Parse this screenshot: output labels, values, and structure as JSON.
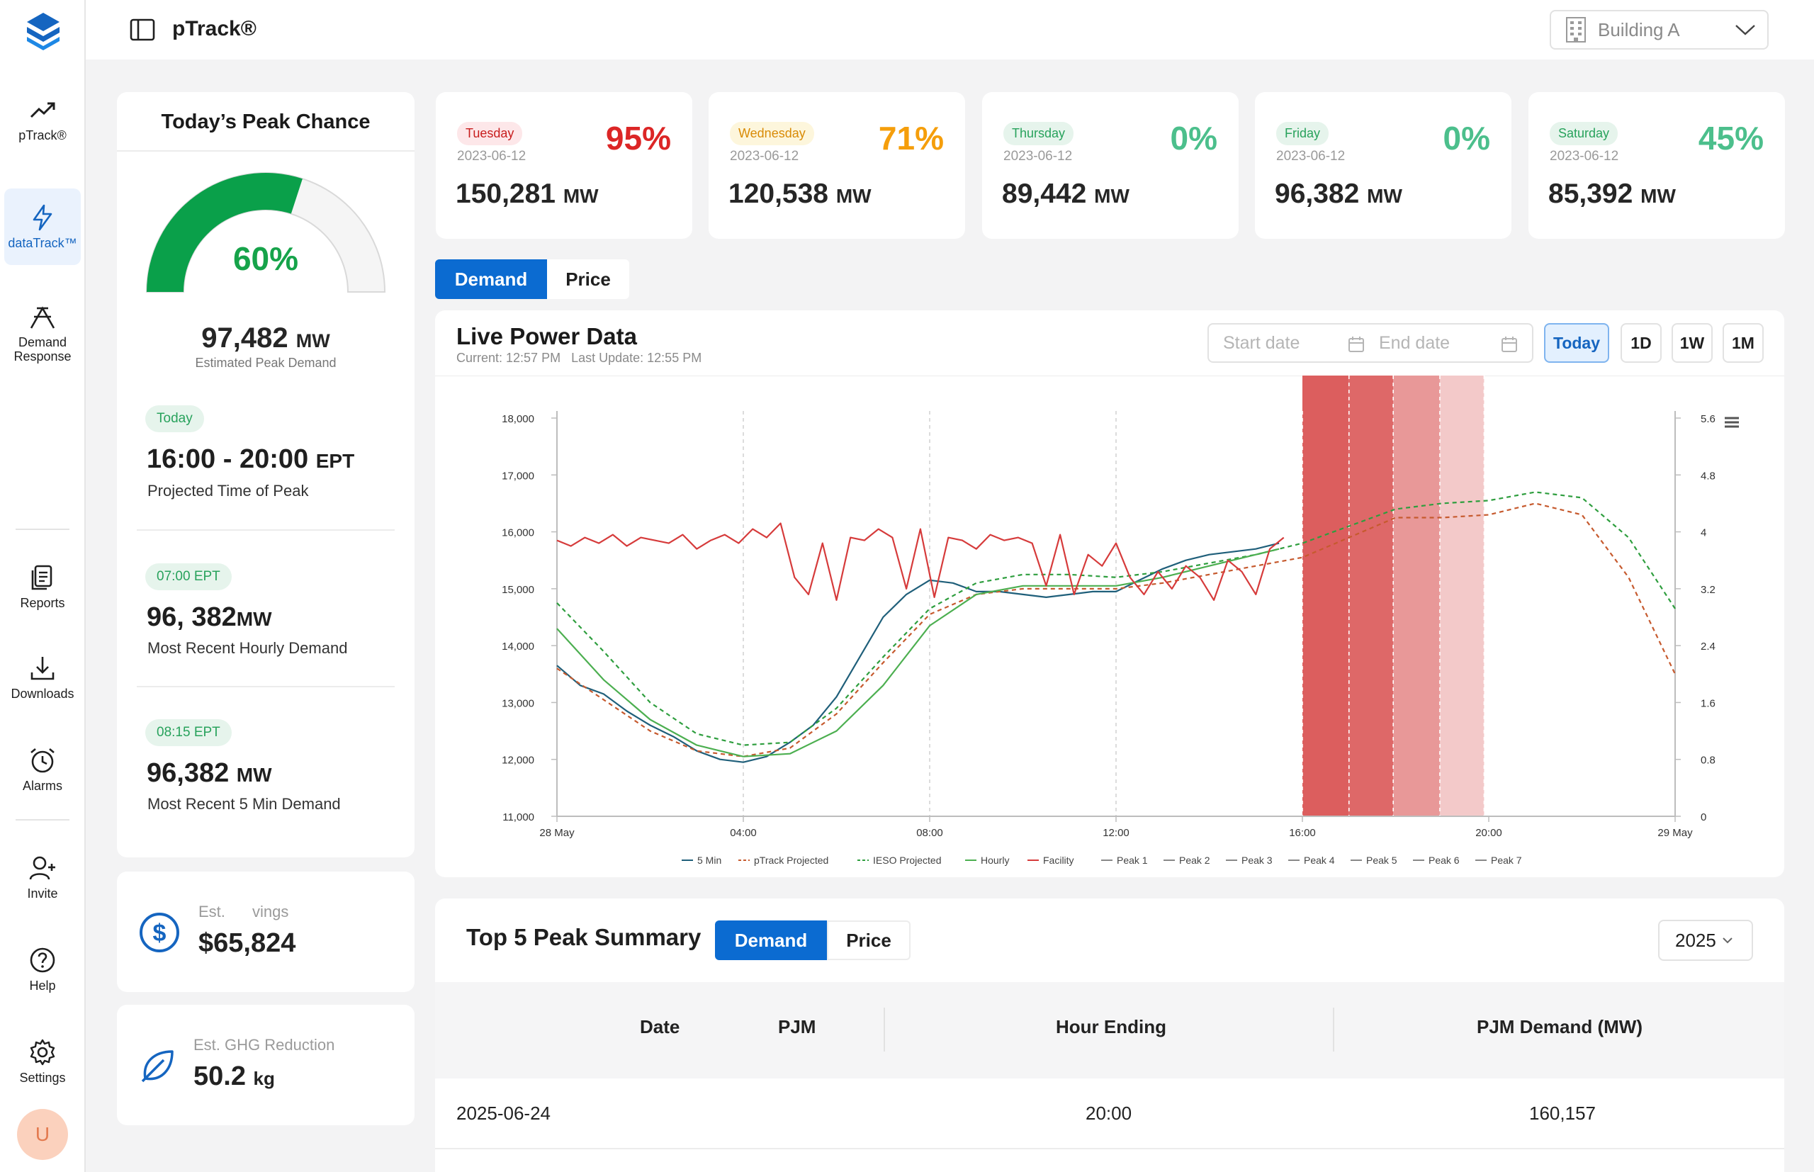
{
  "app": {
    "title": "pTrack®"
  },
  "sidebar": {
    "items": [
      {
        "label": "pTrack®",
        "icon": "trending-up-icon"
      },
      {
        "label": "dataTrack™",
        "icon": "lightning-icon"
      },
      {
        "label": "Demand Response",
        "icon": "demand-response-icon"
      },
      {
        "label": "Reports",
        "icon": "reports-icon"
      },
      {
        "label": "Downloads",
        "icon": "download-icon"
      },
      {
        "label": "Alarms",
        "icon": "alarm-clock-icon"
      },
      {
        "label": "Invite",
        "icon": "add-user-icon"
      },
      {
        "label": "Help",
        "icon": "help-icon"
      },
      {
        "label": "Settings",
        "icon": "gear-icon"
      }
    ],
    "active": "dataTrack™",
    "avatar_initial": "U"
  },
  "topbar": {
    "building": "Building A"
  },
  "peak_card": {
    "title": "Today’s Peak Chance",
    "gauge_value": "60%",
    "gauge_fraction": 0.6,
    "est_peak_value": "97,482",
    "est_peak_unit": "MW",
    "est_peak_label": "Estimated Peak Demand",
    "today_pill": "Today",
    "time_range": "16:00 - 20:00",
    "time_zone": "EPT",
    "time_label": "Projected Time of Peak",
    "hourly_pill": "07:00 EPT",
    "hourly_value": "96, 382",
    "hourly_unit": "MW",
    "hourly_label": "Most Recent Hourly Demand",
    "fivemin_pill": "08:15 EPT",
    "fivemin_value": "96,382",
    "fivemin_unit": "MW",
    "fivemin_label": "Most Recent 5 Min Demand"
  },
  "savings": {
    "label_a": "Est.",
    "label_b": "vings",
    "value": "$65,824"
  },
  "ghg": {
    "label": "Est. GHG Reduction",
    "value": "50.2",
    "unit": "kg"
  },
  "forecast": [
    {
      "day": "Tuesday",
      "date": "2023-06-12",
      "pct": "95%",
      "mw": "150,281",
      "unit": "MW",
      "color": "#dc2626",
      "pill_bg": "#fde7e9",
      "pill_color": "#c81e1e"
    },
    {
      "day": "Wednesday",
      "date": "2023-06-12",
      "pct": "71%",
      "mw": "120,538",
      "unit": "MW",
      "color": "#f59e0b",
      "pill_bg": "#fdf6dc",
      "pill_color": "#d98b06"
    },
    {
      "day": "Thursday",
      "date": "2023-06-12",
      "pct": "0%",
      "mw": "89,442",
      "unit": "MW",
      "color": "#4cbf8c",
      "pill_bg": "#e6f4ec",
      "pill_color": "#28a25c"
    },
    {
      "day": "Friday",
      "date": "2023-06-12",
      "pct": "0%",
      "mw": "96,382",
      "unit": "MW",
      "color": "#4cbf8c",
      "pill_bg": "#e6f4ec",
      "pill_color": "#28a25c"
    },
    {
      "day": "Saturday",
      "date": "2023-06-12",
      "pct": "45%",
      "mw": "85,392",
      "unit": "MW",
      "color": "#4cbf8c",
      "pill_bg": "#e6f4ec",
      "pill_color": "#28a25c"
    }
  ],
  "main_tabs": {
    "demand": "Demand",
    "price": "Price"
  },
  "chart_card": {
    "title": "Live Power Data",
    "current": "Current: 12:57 PM",
    "last_update": "Last Update: 12:55 PM",
    "start_placeholder": "Start date",
    "end_placeholder": "End date",
    "ranges": [
      "Today",
      "1D",
      "1W",
      "1M"
    ]
  },
  "chart_data": {
    "type": "line",
    "x_ticks": [
      {
        "label": "28 May",
        "hour": 0
      },
      {
        "label": "04:00",
        "hour": 4
      },
      {
        "label": "08:00",
        "hour": 8
      },
      {
        "label": "12:00",
        "hour": 12
      },
      {
        "label": "16:00",
        "hour": 16
      },
      {
        "label": "20:00",
        "hour": 20
      },
      {
        "label": "29 May",
        "hour": 24
      }
    ],
    "ylim": [
      11000,
      18000
    ],
    "y_ticks": [
      "11,000",
      "12,000",
      "13,000",
      "14,000",
      "15,000",
      "16,000",
      "17,000",
      "18,000"
    ],
    "y2lim": [
      0,
      5.6
    ],
    "y2_ticks": [
      "0",
      "0.8",
      "1.6",
      "2.4",
      "3.2",
      "4",
      "4.8",
      "5.6"
    ],
    "peak_bands": [
      {
        "name": "Peak 1",
        "start": 16.0,
        "end": 17.0,
        "color": "#dc5e5e"
      },
      {
        "name": "Peak 2",
        "start": 17.0,
        "end": 17.95,
        "color": "#de6868"
      },
      {
        "name": "Peak 3",
        "start": 17.95,
        "end": 18.95,
        "color": "#e89898"
      },
      {
        "name": "Peak 4",
        "start": 18.95,
        "end": 19.9,
        "color": "#f3c9c9"
      }
    ],
    "legend": [
      "5 Min",
      "pTrack Projected",
      "IESO Projected",
      "Hourly",
      "Facility",
      "Peak 1",
      "Peak 2",
      "Peak 3",
      "Peak 4",
      "Peak 5",
      "Peak 6",
      "Peak 7"
    ],
    "series": [
      {
        "name": "5 Min",
        "color": "#1f5f7a",
        "dash": "",
        "x": [
          0,
          0.5,
          1,
          1.5,
          2,
          2.5,
          3,
          3.5,
          4,
          4.5,
          5,
          5.5,
          6,
          6.5,
          7,
          7.5,
          8,
          8.5,
          9,
          9.5,
          10,
          10.5,
          11,
          11.5,
          12,
          12.5,
          13,
          13.5,
          14,
          14.5,
          15,
          15.5
        ],
        "y": [
          13650,
          13300,
          13150,
          12850,
          12600,
          12400,
          12150,
          12000,
          11950,
          12050,
          12300,
          12600,
          13100,
          13800,
          14500,
          14900,
          15150,
          15100,
          14950,
          14950,
          14900,
          14850,
          14900,
          14950,
          14950,
          15150,
          15350,
          15500,
          15600,
          15650,
          15700,
          15800
        ]
      },
      {
        "name": "pTrack Projected",
        "color": "#c65a2e",
        "dash": "6,5",
        "x": [
          0,
          1,
          2,
          3,
          4,
          5,
          6,
          7,
          8,
          9,
          10,
          11,
          12,
          13,
          14,
          15,
          16,
          17,
          18,
          19,
          20,
          21,
          22,
          23,
          24
        ],
        "y": [
          13600,
          13050,
          12500,
          12150,
          12050,
          12200,
          12800,
          13700,
          14550,
          14900,
          15000,
          15000,
          15000,
          15100,
          15250,
          15400,
          15550,
          15900,
          16250,
          16250,
          16300,
          16500,
          16300,
          15200,
          13500
        ]
      },
      {
        "name": "IESO Projected",
        "color": "#2e9e3e",
        "dash": "6,5",
        "x": [
          0,
          1,
          2,
          3,
          4,
          5,
          6,
          7,
          8,
          9,
          10,
          11,
          12,
          13,
          14,
          15,
          16,
          17,
          18,
          19,
          20,
          21,
          22,
          23,
          24
        ],
        "y": [
          14750,
          13900,
          13000,
          12450,
          12250,
          12300,
          12900,
          13800,
          14650,
          15100,
          15250,
          15250,
          15200,
          15300,
          15450,
          15600,
          15800,
          16100,
          16400,
          16500,
          16550,
          16700,
          16600,
          15900,
          14650
        ]
      },
      {
        "name": "Hourly",
        "color": "#4caf50",
        "dash": "",
        "x": [
          0,
          1,
          2,
          3,
          4,
          5,
          6,
          7,
          8,
          9,
          10,
          11,
          12,
          13,
          14,
          15,
          15.5
        ],
        "y": [
          14300,
          13400,
          12700,
          12250,
          12050,
          12100,
          12500,
          13300,
          14350,
          14900,
          15050,
          15050,
          15050,
          15200,
          15400,
          15600,
          15700
        ]
      },
      {
        "name": "Facility",
        "color": "#d63b3b",
        "dash": "",
        "x": [
          0,
          0.3,
          0.6,
          0.9,
          1.2,
          1.5,
          1.8,
          2.1,
          2.4,
          2.7,
          3,
          3.3,
          3.6,
          3.9,
          4.2,
          4.5,
          4.8,
          5.1,
          5.4,
          5.7,
          6,
          6.3,
          6.6,
          6.9,
          7.2,
          7.5,
          7.8,
          8.1,
          8.4,
          8.7,
          9,
          9.3,
          9.6,
          9.9,
          10.2,
          10.5,
          10.8,
          11.1,
          11.4,
          11.7,
          12,
          12.3,
          12.6,
          12.9,
          13.2,
          13.5,
          13.8,
          14.1,
          14.4,
          14.7,
          15,
          15.3,
          15.6
        ],
        "y": [
          15850,
          15750,
          15900,
          15800,
          15950,
          15750,
          15900,
          15850,
          15800,
          15950,
          15700,
          15850,
          15950,
          15800,
          16050,
          15900,
          16150,
          15200,
          14900,
          15800,
          14800,
          15900,
          15850,
          16050,
          15900,
          15000,
          16050,
          14850,
          15900,
          15850,
          15700,
          15950,
          15850,
          15900,
          15800,
          15050,
          15950,
          14900,
          15600,
          15400,
          15800,
          15200,
          14900,
          15300,
          15000,
          15400,
          15200,
          14800,
          15500,
          15300,
          14900,
          15700,
          15900
        ]
      }
    ]
  },
  "summary": {
    "title": "Top 5 Peak Summary",
    "tab_demand": "Demand",
    "tab_price": "Price",
    "year": "2025",
    "columns": [
      "Date",
      "PJM",
      "Hour Ending",
      "PJM Demand (MW)"
    ],
    "rows": [
      {
        "date": "2025-06-24",
        "hour": "20:00",
        "demand": "160,157"
      }
    ]
  }
}
